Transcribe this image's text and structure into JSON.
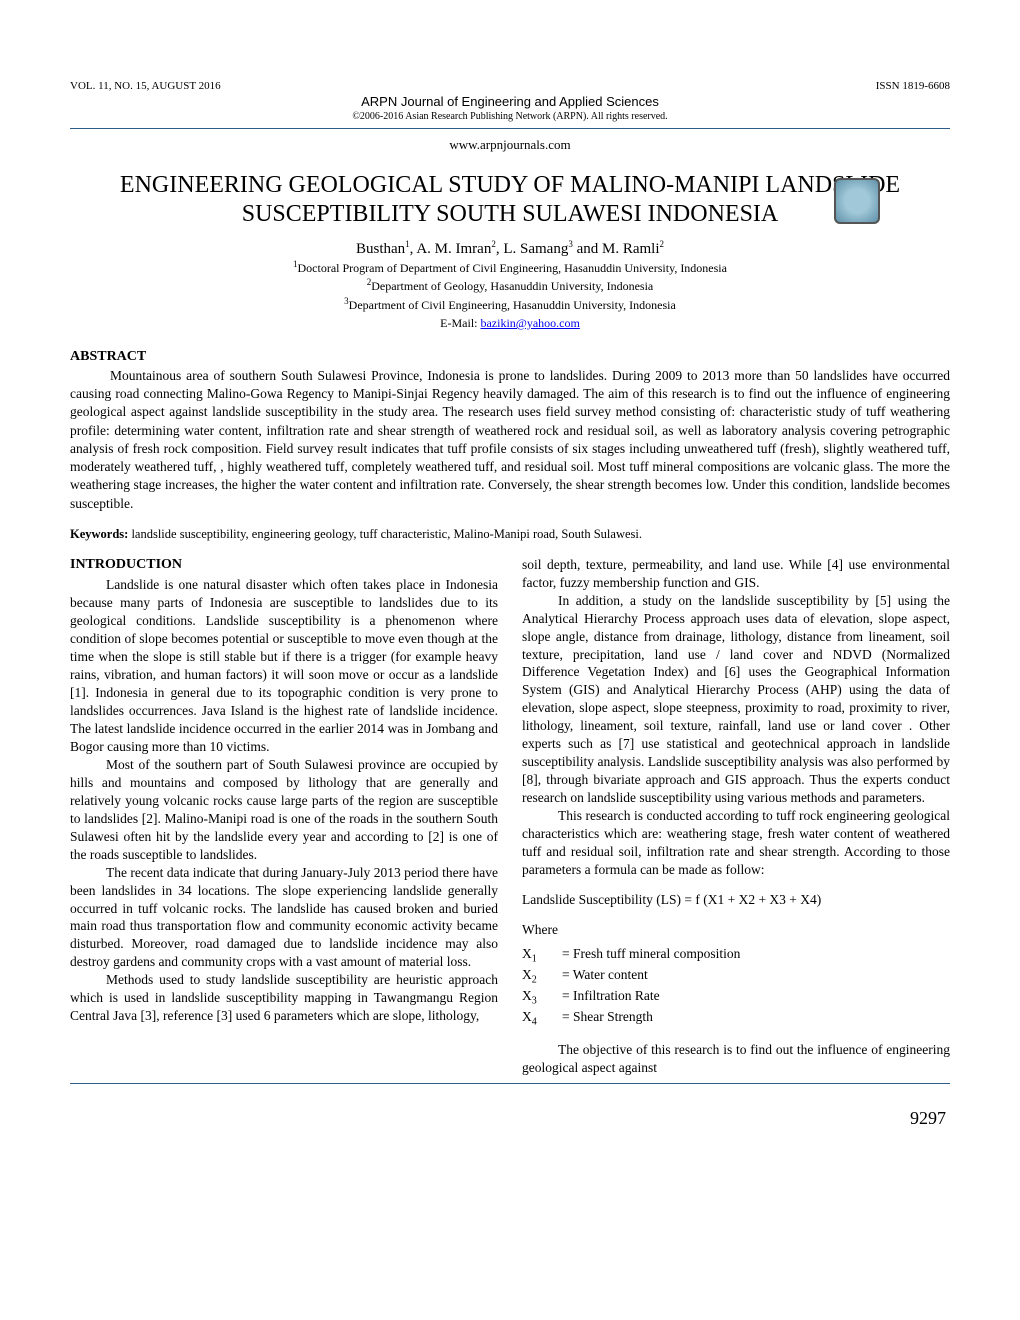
{
  "header": {
    "vol": "VOL. 11, NO. 15, AUGUST 2016",
    "issn": "ISSN 1819-6608",
    "journal": "ARPN Journal of Engineering and Applied Sciences",
    "copyright": "©2006-2016 Asian Research Publishing Network (ARPN). All rights reserved.",
    "url": "www.arpnjournals.com"
  },
  "title_line1": "ENGINEERING GEOLOGICAL STUDY OF MALINO-MANIPI LANDSLIDE",
  "title_line2": "SUSCEPTIBILITY SOUTH SULAWESI INDONESIA",
  "authors_html": "Busthan<sup>1</sup>, A. M. Imran<sup>2</sup>, L. Samang<sup>3</sup> and M. Ramli<sup>2</sup>",
  "affiliations": [
    "<sup>1</sup>Doctoral Program of Department of Civil Engineering, Hasanuddin University, Indonesia",
    "<sup>2</sup>Department of Geology, Hasanuddin University, Indonesia",
    "<sup>3</sup>Department of Civil Engineering, Hasanuddin University, Indonesia"
  ],
  "email_label": "E-Mail: ",
  "email": "bazikin@yahoo.com",
  "abstract_head": "ABSTRACT",
  "abstract": "Mountainous area of southern South Sulawesi Province, Indonesia is prone to landslides. During 2009 to 2013 more than 50 landslides have occurred causing road connecting Malino-Gowa Regency to Manipi-Sinjai Regency heavily damaged. The aim of this research is to find out the influence of engineering geological aspect against landslide susceptibility in the study area. The research uses field survey method consisting of: characteristic study of tuff weathering profile: determining water content, infiltration rate and shear strength of weathered rock and residual soil, as well as laboratory analysis covering petrographic analysis of fresh rock composition. Field survey result indicates that tuff profile consists of six stages including unweathered tuff (fresh), slightly weathered tuff, moderately weathered tuff, , highly weathered tuff, completely weathered tuff, and residual soil. Most tuff mineral compositions are volcanic glass. The more the weathering stage increases, the higher the water content and infiltration rate. Conversely, the shear strength becomes low. Under this condition, landslide becomes susceptible.",
  "keywords_label": "Keywords:",
  "keywords": " landslide susceptibility, engineering geology, tuff characteristic, Malino-Manipi road, South Sulawesi.",
  "intro_head": "INTRODUCTION",
  "left_paras": [
    "Landslide is one natural disaster which often takes place in Indonesia because many parts of Indonesia are susceptible to landslides due to its geological conditions. Landslide susceptibility is a phenomenon where condition of slope becomes potential or susceptible to move even though at the time when the slope is still stable but if there is a trigger (for example heavy rains, vibration, and human factors) it will soon move or occur as a landslide [1]. Indonesia in general due to its topographic condition is very prone to landslides occurrences. Java Island is the highest rate of landslide incidence. The latest landslide incidence occurred in the earlier 2014 was in Jombang and Bogor causing more than 10 victims.",
    "Most of the southern part of South Sulawesi province are occupied by hills and mountains and composed by lithology that are generally and relatively young volcanic rocks cause large parts of the region are susceptible to landslides [2]. Malino-Manipi road is one of the roads in the southern South Sulawesi often hit by the landslide every year and according to [2] is one of the roads susceptible to landslides.",
    "The recent data indicate that during January-July 2013 period there have been landslides in 34 locations. The slope experiencing landslide generally occurred in tuff volcanic rocks. The landslide has caused broken and buried main road thus transportation flow and community economic activity became disturbed. Moreover, road damaged due to landslide incidence may also destroy gardens and community crops with a vast amount of material loss.",
    "Methods used to study landslide susceptibility are heuristic approach which is used in landslide susceptibility mapping in Tawangmangu Region Central Java [3], reference [3] used 6 parameters which are slope, lithology,"
  ],
  "right_top": "soil depth, texture, permeability, and land use. While [4] use environmental factor, fuzzy membership function and GIS.",
  "right_paras": [
    "In addition, a study on the landslide susceptibility by [5] using the Analytical Hierarchy Process approach uses data of elevation, slope aspect, slope angle, distance from drainage, lithology, distance from lineament, soil texture, precipitation, land use / land cover and NDVD (Normalized Difference Vegetation Index) and [6] uses the Geographical Information System (GIS) and Analytical Hierarchy Process (AHP)  using the data of elevation, slope aspect, slope steepness, proximity to road, proximity to river, lithology, lineament, soil texture, rainfall, land use or land cover . Other experts such as [7] use statistical and geotechnical approach in landslide susceptibility analysis. Landslide susceptibility analysis was also performed by [8], through bivariate approach and GIS approach. Thus the experts conduct research on landslide susceptibility using various methods and parameters.",
    "This research is conducted according to tuff rock engineering geological characteristics which are: weathering stage, fresh water content of weathered tuff and residual soil, infiltration rate and shear strength. According to those parameters a formula can be made as follow:"
  ],
  "formula": "Landslide Susceptibility (LS) = f (X1 + X2 + X3 + X4)",
  "where_label": "Where",
  "variables": [
    {
      "sym": "X<sub>1</sub>",
      "def": "= Fresh tuff mineral composition"
    },
    {
      "sym": "X<sub>2</sub>",
      "def": "= Water content"
    },
    {
      "sym": "X<sub>3</sub>",
      "def": "= Infiltration Rate"
    },
    {
      "sym": "X<sub>4</sub>",
      "def": "= Shear Strength"
    }
  ],
  "right_last": "The objective of this research is to find out the influence of engineering geological aspect against",
  "page_number": "9297"
}
